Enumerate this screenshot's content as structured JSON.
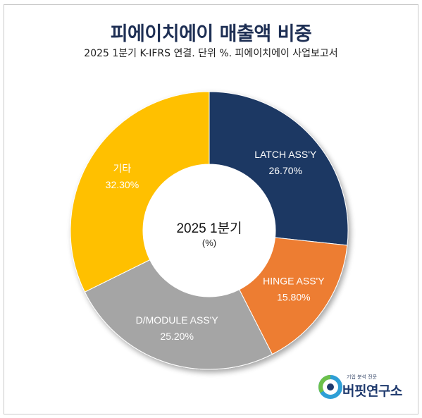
{
  "chart_data": {
    "type": "pie",
    "title": "피에이치에이 매출액 비중",
    "subtitle": "2025 1분기 K-IFRS 연결. 단위 %. 피에이치에이 사업보고서",
    "center_label": "2025 1분기",
    "center_unit": "(%)",
    "donut": true,
    "slices": [
      {
        "label": "LATCH ASS'Y",
        "value": 26.7,
        "value_text": "26.70%",
        "color": "#1f3864",
        "text_color": "#ffffff"
      },
      {
        "label": "HINGE ASS'Y",
        "value": 15.8,
        "value_text": "15.80%",
        "color": "#ed7d31",
        "text_color": "#ffffff"
      },
      {
        "label": "D/MODULE ASS'Y",
        "value": 25.2,
        "value_text": "25.20%",
        "color": "#a5a5a5",
        "text_color": "#ffffff"
      },
      {
        "label": "기타",
        "value": 32.3,
        "value_text": "32.30%",
        "color": "#ffc000",
        "text_color": "#ffffff"
      }
    ]
  },
  "logo": {
    "tagline": "기업 분석 전문",
    "name": "버핏연구소"
  }
}
